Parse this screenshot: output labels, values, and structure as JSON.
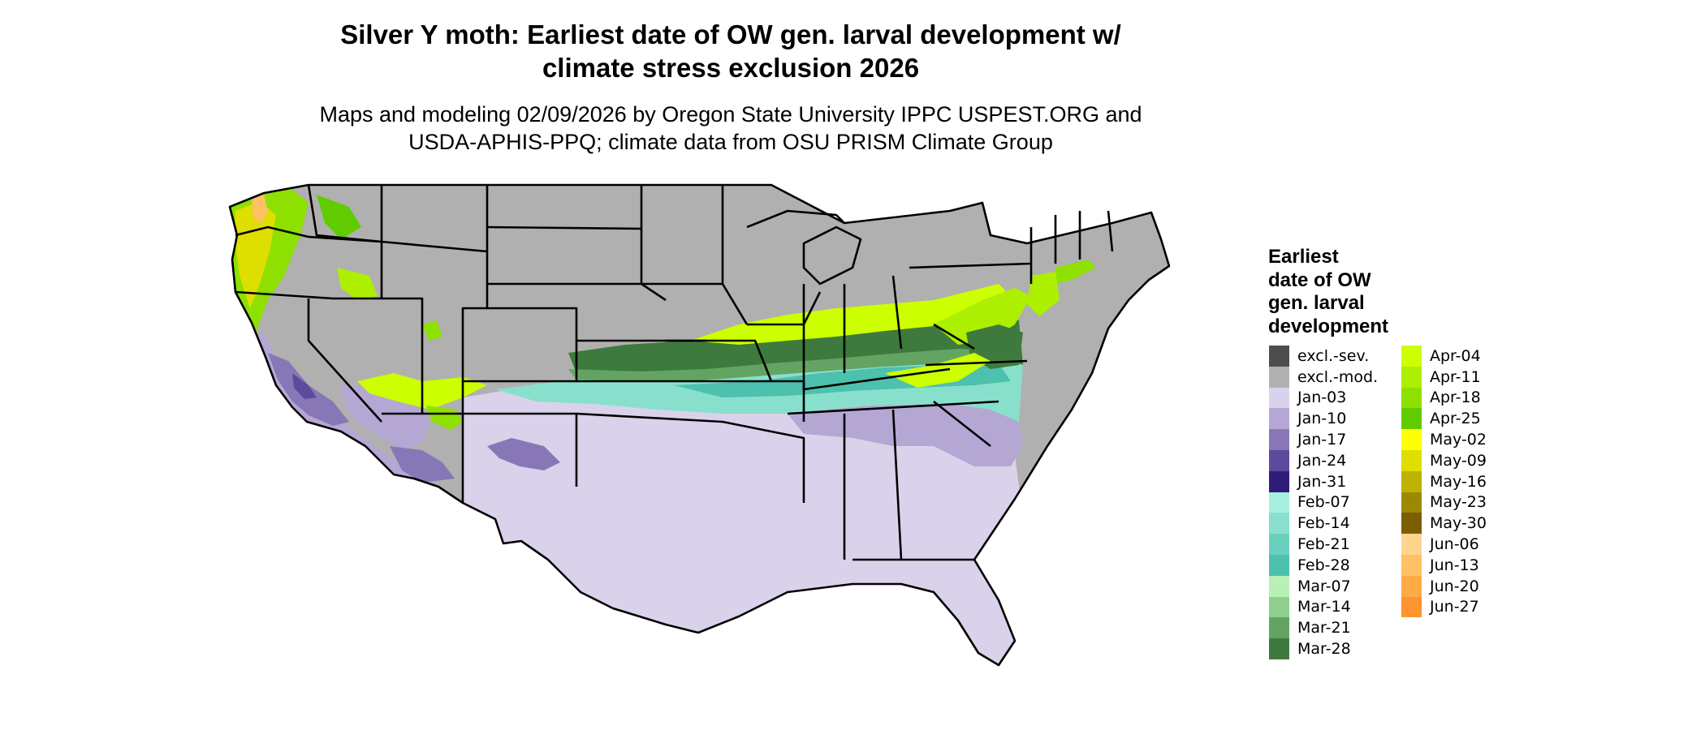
{
  "title": "Silver Y moth: Earliest date of OW gen. larval development w/\nclimate stress exclusion 2026",
  "subtitle": "Maps and modeling 02/09/2026 by Oregon State University IPPC USPEST.ORG and\nUSDA-APHIS-PPQ; climate data from OSU PRISM Climate Group",
  "legend": {
    "title": "Earliest\ndate of OW\ngen. larval\ndevelopment",
    "columns": [
      [
        {
          "label": "excl.-sev.",
          "color": "#4d4d4d"
        },
        {
          "label": "excl.-mod.",
          "color": "#b0b0b0"
        },
        {
          "label": "Jan-03",
          "color": "#dad2ea"
        },
        {
          "label": "Jan-10",
          "color": "#b4a7d4"
        },
        {
          "label": "Jan-17",
          "color": "#8877b7"
        },
        {
          "label": "Jan-24",
          "color": "#5c4a9c"
        },
        {
          "label": "Jan-31",
          "color": "#301b7a"
        },
        {
          "label": "Feb-07",
          "color": "#a6f0df"
        },
        {
          "label": "Feb-14",
          "color": "#88e0cc"
        },
        {
          "label": "Feb-21",
          "color": "#6ad0bd"
        },
        {
          "label": "Feb-28",
          "color": "#4dc0ae"
        },
        {
          "label": "Mar-07",
          "color": "#b8f0b8"
        },
        {
          "label": "Mar-14",
          "color": "#8ecf8e"
        },
        {
          "label": "Mar-21",
          "color": "#63a463"
        },
        {
          "label": "Mar-28",
          "color": "#3e7a3e"
        }
      ],
      [
        {
          "label": "Apr-04",
          "color": "#ccff00"
        },
        {
          "label": "Apr-11",
          "color": "#adef00"
        },
        {
          "label": "Apr-18",
          "color": "#8ee000"
        },
        {
          "label": "Apr-25",
          "color": "#60cc00"
        },
        {
          "label": "May-02",
          "color": "#ffff00"
        },
        {
          "label": "May-09",
          "color": "#dede00"
        },
        {
          "label": "May-16",
          "color": "#bdb300"
        },
        {
          "label": "May-23",
          "color": "#9b8a00"
        },
        {
          "label": "May-30",
          "color": "#7a5e00"
        },
        {
          "label": "Jun-06",
          "color": "#ffd48f"
        },
        {
          "label": "Jun-13",
          "color": "#ffc066"
        },
        {
          "label": "Jun-20",
          "color": "#ffab45"
        },
        {
          "label": "Jun-27",
          "color": "#ff9530"
        }
      ]
    ]
  }
}
